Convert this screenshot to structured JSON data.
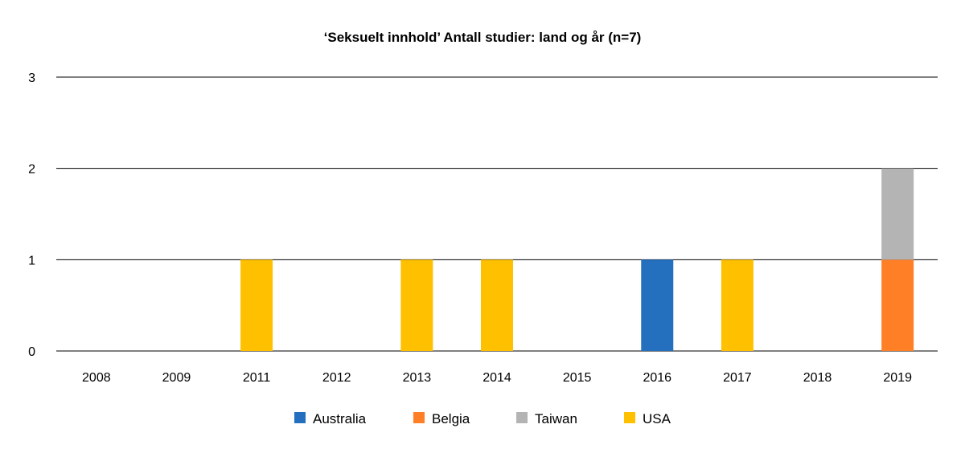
{
  "chart_data": {
    "type": "bar",
    "stacked": true,
    "title": "‘Seksuelt innhold’ Antall studier: land og år (n=7)",
    "xlabel": "",
    "ylabel": "",
    "categories": [
      "2008",
      "2009",
      "2011",
      "2012",
      "2013",
      "2014",
      "2015",
      "2016",
      "2017",
      "2018",
      "2019"
    ],
    "ylim": [
      0,
      3
    ],
    "yticks": [
      0,
      1,
      2,
      3
    ],
    "grid": true,
    "legend_position": "bottom",
    "series": [
      {
        "name": "Australia",
        "color": "#2470BF",
        "values": [
          0,
          0,
          0,
          0,
          0,
          0,
          0,
          1,
          0,
          0,
          0
        ]
      },
      {
        "name": "Belgia",
        "color": "#FF7F27",
        "values": [
          0,
          0,
          0,
          0,
          0,
          0,
          0,
          0,
          0,
          0,
          1
        ]
      },
      {
        "name": "Taiwan",
        "color": "#B4B4B4",
        "values": [
          0,
          0,
          0,
          0,
          0,
          0,
          0,
          0,
          0,
          0,
          1
        ]
      },
      {
        "name": "USA",
        "color": "#FFC000",
        "values": [
          0,
          0,
          1,
          0,
          1,
          1,
          0,
          0,
          1,
          0,
          0
        ]
      }
    ]
  }
}
